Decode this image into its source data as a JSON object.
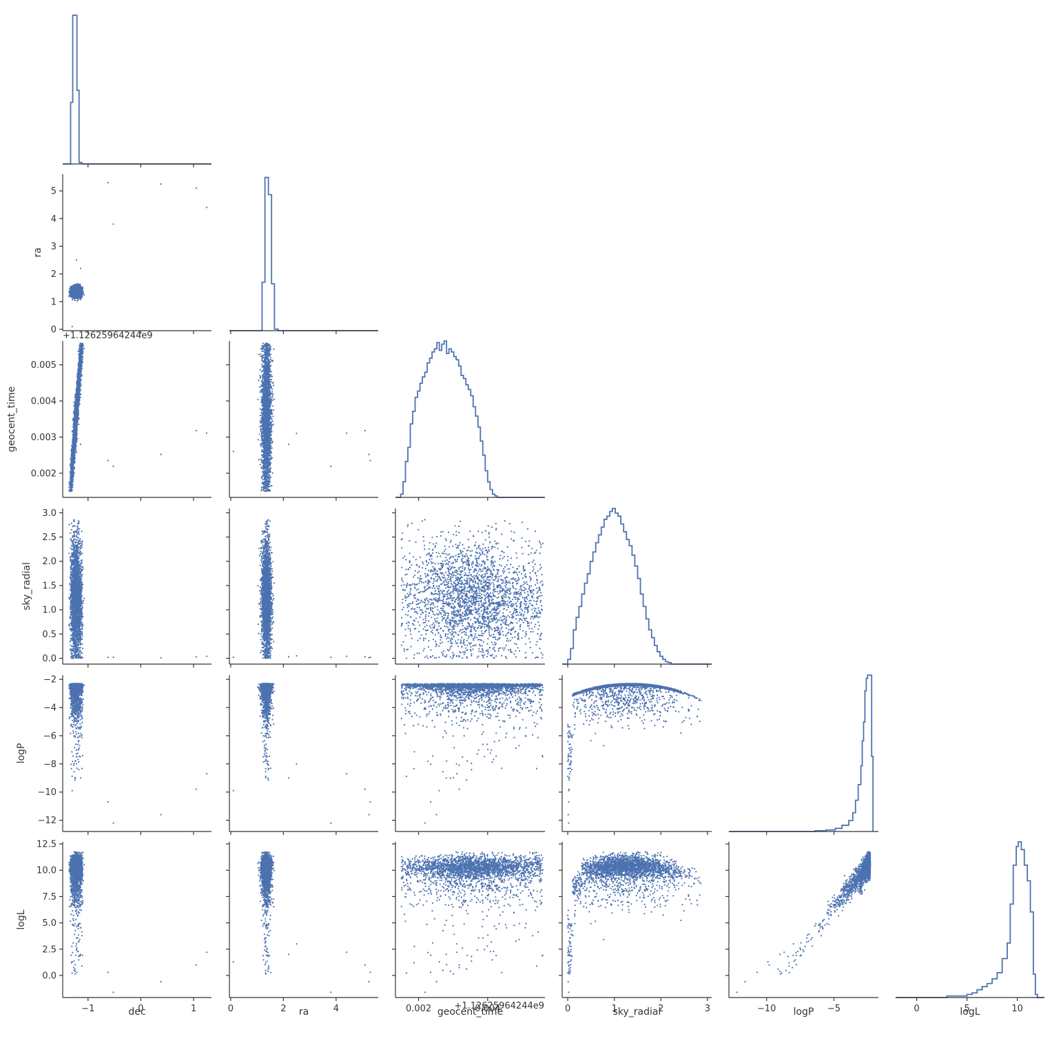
{
  "chart_data": {
    "type": "scatter",
    "kind": "corner-plot",
    "color": "#4c72b0",
    "variables": [
      "dec",
      "ra",
      "geocent_time",
      "sky_radial",
      "logP",
      "logL"
    ],
    "offset_text": "+1.12625964244e9",
    "ranges": {
      "dec": [
        -1.48,
        1.34
      ],
      "ra": [
        -0.05,
        5.6
      ],
      "geocent_time": [
        0.00133,
        0.00566
      ],
      "sky_radial": [
        -0.12,
        3.09
      ],
      "logP": [
        -12.8,
        -1.7
      ],
      "logL": [
        -2.1,
        12.7
      ]
    },
    "ticks": {
      "dec": [
        {
          "v": -1,
          "t": "−1"
        },
        {
          "v": 0,
          "t": "0"
        },
        {
          "v": 1,
          "t": "1"
        }
      ],
      "ra": [
        {
          "v": 0,
          "t": "0"
        },
        {
          "v": 1,
          "t": "1"
        },
        {
          "v": 2,
          "t": "2"
        },
        {
          "v": 3,
          "t": "3"
        },
        {
          "v": 4,
          "t": "4"
        },
        {
          "v": 5,
          "t": "5"
        }
      ],
      "ra_x": [
        {
          "v": 0,
          "t": "0"
        },
        {
          "v": 2,
          "t": "2"
        },
        {
          "v": 4,
          "t": "4"
        }
      ],
      "geocent_time": [
        {
          "v": 0.002,
          "t": "0.002"
        },
        {
          "v": 0.003,
          "t": "0.003"
        },
        {
          "v": 0.004,
          "t": "0.004"
        },
        {
          "v": 0.005,
          "t": "0.005"
        }
      ],
      "geocent_time_x": [
        {
          "v": 0.002,
          "t": "0.002"
        },
        {
          "v": 0.004,
          "t": "0.004"
        }
      ],
      "sky_radial": [
        {
          "v": 0,
          "t": "0.0"
        },
        {
          "v": 0.5,
          "t": "0.5"
        },
        {
          "v": 1,
          "t": "1.0"
        },
        {
          "v": 1.5,
          "t": "1.5"
        },
        {
          "v": 2,
          "t": "2.0"
        },
        {
          "v": 2.5,
          "t": "2.5"
        },
        {
          "v": 3,
          "t": "3.0"
        }
      ],
      "sky_radial_x": [
        {
          "v": 0,
          "t": "0"
        },
        {
          "v": 1,
          "t": "1"
        },
        {
          "v": 2,
          "t": "2"
        },
        {
          "v": 3,
          "t": "3"
        }
      ],
      "logP": [
        {
          "v": -12,
          "t": "−12"
        },
        {
          "v": -10,
          "t": "−10"
        },
        {
          "v": -8,
          "t": "−8"
        },
        {
          "v": -6,
          "t": "−6"
        },
        {
          "v": -4,
          "t": "−4"
        },
        {
          "v": -2,
          "t": "−2"
        }
      ],
      "logP_x": [
        {
          "v": -10,
          "t": "−10"
        },
        {
          "v": -5,
          "t": "−5"
        }
      ],
      "logL": [
        {
          "v": 0,
          "t": "0.0"
        },
        {
          "v": 2.5,
          "t": "2.5"
        },
        {
          "v": 5,
          "t": "5.0"
        },
        {
          "v": 7.5,
          "t": "7.5"
        },
        {
          "v": 10,
          "t": "10.0"
        },
        {
          "v": 12.5,
          "t": "12.5"
        }
      ],
      "logL_x": [
        {
          "v": 0,
          "t": "0"
        },
        {
          "v": 5,
          "t": "5"
        },
        {
          "v": 10,
          "t": "10"
        }
      ]
    },
    "histograms": {
      "dec": [
        {
          "x": -1.48,
          "y": 0
        },
        {
          "x": -1.36,
          "y": 0
        },
        {
          "x": -1.33,
          "y": 0.41
        },
        {
          "x": -1.29,
          "y": 0.99
        },
        {
          "x": -1.21,
          "y": 0.49
        },
        {
          "x": -1.17,
          "y": 0.01
        },
        {
          "x": -1.12,
          "y": 0
        },
        {
          "x": 1.34,
          "y": 0
        }
      ],
      "ra": [
        {
          "x": -0.05,
          "y": 0
        },
        {
          "x": 1.1,
          "y": 0
        },
        {
          "x": 1.19,
          "y": 0.31
        },
        {
          "x": 1.3,
          "y": 0.98
        },
        {
          "x": 1.43,
          "y": 0.87
        },
        {
          "x": 1.55,
          "y": 0.3
        },
        {
          "x": 1.66,
          "y": 0.01
        },
        {
          "x": 1.8,
          "y": 0
        },
        {
          "x": 5.6,
          "y": 0
        }
      ],
      "geocent_time": [
        {
          "x": 0.00133,
          "y": 0
        },
        {
          "x": 0.00148,
          "y": 0.02
        },
        {
          "x": 0.00155,
          "y": 0.1
        },
        {
          "x": 0.00162,
          "y": 0.23
        },
        {
          "x": 0.00169,
          "y": 0.32
        },
        {
          "x": 0.00176,
          "y": 0.47
        },
        {
          "x": 0.00183,
          "y": 0.55
        },
        {
          "x": 0.0019,
          "y": 0.64
        },
        {
          "x": 0.00197,
          "y": 0.68
        },
        {
          "x": 0.00204,
          "y": 0.73
        },
        {
          "x": 0.00211,
          "y": 0.77
        },
        {
          "x": 0.00218,
          "y": 0.8
        },
        {
          "x": 0.00225,
          "y": 0.86
        },
        {
          "x": 0.00232,
          "y": 0.89
        },
        {
          "x": 0.00239,
          "y": 0.93
        },
        {
          "x": 0.00246,
          "y": 0.95
        },
        {
          "x": 0.00253,
          "y": 0.99
        },
        {
          "x": 0.0026,
          "y": 0.94
        },
        {
          "x": 0.00267,
          "y": 0.98
        },
        {
          "x": 0.00274,
          "y": 1.0
        },
        {
          "x": 0.00281,
          "y": 0.92
        },
        {
          "x": 0.00288,
          "y": 0.95
        },
        {
          "x": 0.00295,
          "y": 0.93
        },
        {
          "x": 0.00302,
          "y": 0.9
        },
        {
          "x": 0.00309,
          "y": 0.88
        },
        {
          "x": 0.00316,
          "y": 0.84
        },
        {
          "x": 0.00323,
          "y": 0.78
        },
        {
          "x": 0.0033,
          "y": 0.76
        },
        {
          "x": 0.00337,
          "y": 0.72
        },
        {
          "x": 0.00344,
          "y": 0.69
        },
        {
          "x": 0.00351,
          "y": 0.65
        },
        {
          "x": 0.00358,
          "y": 0.58
        },
        {
          "x": 0.00365,
          "y": 0.52
        },
        {
          "x": 0.00372,
          "y": 0.45
        },
        {
          "x": 0.00379,
          "y": 0.36
        },
        {
          "x": 0.00386,
          "y": 0.27
        },
        {
          "x": 0.00393,
          "y": 0.17
        },
        {
          "x": 0.004,
          "y": 0.1
        },
        {
          "x": 0.00407,
          "y": 0.05
        },
        {
          "x": 0.00414,
          "y": 0.02
        },
        {
          "x": 0.00421,
          "y": 0.01
        },
        {
          "x": 0.00428,
          "y": 0
        },
        {
          "x": 0.00566,
          "y": 0
        }
      ],
      "sky_radial": [
        {
          "x": -0.12,
          "y": 0
        },
        {
          "x": 0.0,
          "y": 0.03
        },
        {
          "x": 0.06,
          "y": 0.1
        },
        {
          "x": 0.12,
          "y": 0.22
        },
        {
          "x": 0.18,
          "y": 0.3
        },
        {
          "x": 0.24,
          "y": 0.37
        },
        {
          "x": 0.3,
          "y": 0.45
        },
        {
          "x": 0.36,
          "y": 0.52
        },
        {
          "x": 0.42,
          "y": 0.58
        },
        {
          "x": 0.48,
          "y": 0.66
        },
        {
          "x": 0.54,
          "y": 0.72
        },
        {
          "x": 0.6,
          "y": 0.78
        },
        {
          "x": 0.66,
          "y": 0.83
        },
        {
          "x": 0.72,
          "y": 0.88
        },
        {
          "x": 0.78,
          "y": 0.93
        },
        {
          "x": 0.84,
          "y": 0.95
        },
        {
          "x": 0.9,
          "y": 0.98
        },
        {
          "x": 0.96,
          "y": 1.0
        },
        {
          "x": 1.02,
          "y": 0.97
        },
        {
          "x": 1.08,
          "y": 0.95
        },
        {
          "x": 1.14,
          "y": 0.9
        },
        {
          "x": 1.2,
          "y": 0.85
        },
        {
          "x": 1.26,
          "y": 0.8
        },
        {
          "x": 1.32,
          "y": 0.76
        },
        {
          "x": 1.38,
          "y": 0.7
        },
        {
          "x": 1.44,
          "y": 0.63
        },
        {
          "x": 1.5,
          "y": 0.55
        },
        {
          "x": 1.56,
          "y": 0.45
        },
        {
          "x": 1.62,
          "y": 0.37
        },
        {
          "x": 1.68,
          "y": 0.29
        },
        {
          "x": 1.74,
          "y": 0.22
        },
        {
          "x": 1.8,
          "y": 0.17
        },
        {
          "x": 1.86,
          "y": 0.12
        },
        {
          "x": 1.92,
          "y": 0.08
        },
        {
          "x": 1.98,
          "y": 0.05
        },
        {
          "x": 2.04,
          "y": 0.03
        },
        {
          "x": 2.1,
          "y": 0.015
        },
        {
          "x": 2.16,
          "y": 0.01
        },
        {
          "x": 2.22,
          "y": 0
        },
        {
          "x": 3.09,
          "y": 0
        }
      ],
      "logP": [
        {
          "x": -12.8,
          "y": 0
        },
        {
          "x": -6.4,
          "y": 0.005
        },
        {
          "x": -5.6,
          "y": 0.01
        },
        {
          "x": -4.9,
          "y": 0.02
        },
        {
          "x": -4.4,
          "y": 0.04
        },
        {
          "x": -3.9,
          "y": 0.07
        },
        {
          "x": -3.6,
          "y": 0.12
        },
        {
          "x": -3.4,
          "y": 0.2
        },
        {
          "x": -3.2,
          "y": 0.3
        },
        {
          "x": -3.0,
          "y": 0.42
        },
        {
          "x": -2.9,
          "y": 0.58
        },
        {
          "x": -2.8,
          "y": 0.7
        },
        {
          "x": -2.7,
          "y": 0.9
        },
        {
          "x": -2.6,
          "y": 0.98
        },
        {
          "x": -2.5,
          "y": 1.0
        },
        {
          "x": -2.2,
          "y": 0.48
        },
        {
          "x": -2.1,
          "y": 0
        }
      ],
      "logL": [
        {
          "x": -2.1,
          "y": 0
        },
        {
          "x": 3.0,
          "y": 0.01
        },
        {
          "x": 5.0,
          "y": 0.02
        },
        {
          "x": 5.5,
          "y": 0.03
        },
        {
          "x": 6.0,
          "y": 0.05
        },
        {
          "x": 6.5,
          "y": 0.07
        },
        {
          "x": 7.0,
          "y": 0.09
        },
        {
          "x": 7.5,
          "y": 0.12
        },
        {
          "x": 8.0,
          "y": 0.16
        },
        {
          "x": 8.5,
          "y": 0.25
        },
        {
          "x": 9.0,
          "y": 0.35
        },
        {
          "x": 9.3,
          "y": 0.6
        },
        {
          "x": 9.6,
          "y": 0.85
        },
        {
          "x": 9.9,
          "y": 0.97
        },
        {
          "x": 10.1,
          "y": 1.0
        },
        {
          "x": 10.4,
          "y": 0.95
        },
        {
          "x": 10.7,
          "y": 0.85
        },
        {
          "x": 11.0,
          "y": 0.75
        },
        {
          "x": 11.3,
          "y": 0.55
        },
        {
          "x": 11.6,
          "y": 0.15
        },
        {
          "x": 11.8,
          "y": 0.02
        },
        {
          "x": 12.0,
          "y": 0
        },
        {
          "x": 12.7,
          "y": 0
        }
      ]
    },
    "outliers": [
      {
        "dec": -0.62,
        "ra": 5.3,
        "geocent_time": 0.00235,
        "sky_radial": 0.02,
        "logP": -10.7,
        "logL": 0.3
      },
      {
        "dec": -0.52,
        "ra": 3.8,
        "geocent_time": 0.00219,
        "sky_radial": 0.02,
        "logP": -12.2,
        "logL": -1.6
      },
      {
        "dec": 0.38,
        "ra": 5.25,
        "geocent_time": 0.00252,
        "sky_radial": 0.01,
        "logP": -11.6,
        "logL": -0.6
      },
      {
        "dec": 1.05,
        "ra": 5.1,
        "geocent_time": 0.00318,
        "sky_radial": 0.03,
        "logP": -9.8,
        "logL": 1.0
      },
      {
        "dec": 1.25,
        "ra": 4.4,
        "geocent_time": 0.00311,
        "sky_radial": 0.04,
        "logP": -8.7,
        "logL": 2.2
      },
      {
        "dec": -1.22,
        "ra": 2.5,
        "geocent_time": 0.0031,
        "sky_radial": 0.05,
        "logP": -8.0,
        "logL": 3.0
      },
      {
        "dec": -1.14,
        "ra": 2.2,
        "geocent_time": 0.0028,
        "sky_radial": 0.03,
        "logP": -9.0,
        "logL": 2.0
      },
      {
        "dec": -1.3,
        "ra": 0.1,
        "geocent_time": 0.0026,
        "sky_radial": 0.02,
        "logP": -9.9,
        "logL": 1.3
      }
    ]
  }
}
